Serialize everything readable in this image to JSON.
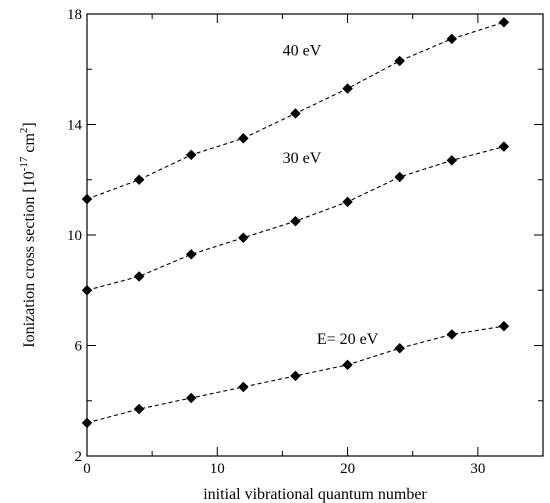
{
  "chart_data": {
    "type": "line",
    "xlabel": "initial vibrational quantum number",
    "ylabel_main": "Ionization cross section [10",
    "ylabel_exp": "-17",
    "ylabel_mid": " cm",
    "ylabel_exp2": "2",
    "ylabel_end": "]",
    "xlim": [
      0,
      35
    ],
    "ylim": [
      2,
      18
    ],
    "xticks": [
      0,
      10,
      20,
      30
    ],
    "yticks": [
      2,
      6,
      10,
      14,
      18
    ],
    "x": [
      0,
      4,
      8,
      12,
      16,
      20,
      24,
      28,
      32
    ],
    "series": [
      {
        "values": [
          3.2,
          3.7,
          4.1,
          4.5,
          4.9,
          5.3,
          5.9,
          6.4,
          6.7
        ],
        "label": "E= 20 eV",
        "label_at": [
          20,
          6.05
        ]
      },
      {
        "values": [
          8.0,
          8.5,
          9.3,
          9.9,
          10.5,
          11.2,
          12.1,
          12.7,
          13.2
        ],
        "label": "30 eV",
        "label_at": [
          16.5,
          12.6
        ]
      },
      {
        "values": [
          11.3,
          12.0,
          12.9,
          13.5,
          14.4,
          15.3,
          16.3,
          17.1,
          17.7
        ],
        "label": "40 eV",
        "label_at": [
          16.5,
          16.5
        ]
      }
    ],
    "marker": "diamond",
    "line_style": "dashed",
    "grid": false,
    "legend": "none"
  }
}
